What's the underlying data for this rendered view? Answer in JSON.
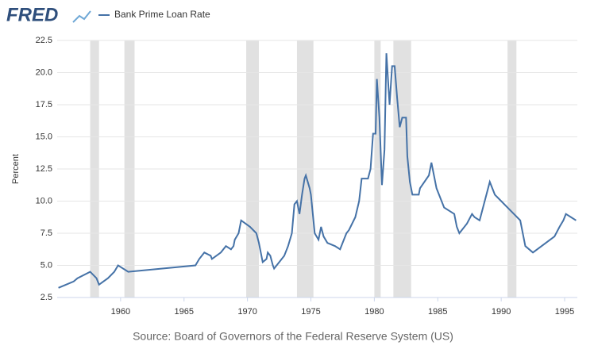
{
  "chart_data": {
    "type": "line",
    "logo": "FRED",
    "ylabel": "Percent",
    "source": "Source: Board of Governors of the Federal Reserve System (US)",
    "xlim": [
      1955,
      1996
    ],
    "xticks": [
      1960,
      1965,
      1970,
      1975,
      1980,
      1985,
      1990,
      1995
    ],
    "ylim": [
      2.5,
      22.5
    ],
    "yticks": [
      2.5,
      {
        "value": 5,
        "label": "5.0"
      },
      7.5,
      {
        "value": 10,
        "label": "10.0"
      },
      12.5,
      {
        "value": 15,
        "label": "15.0"
      },
      17.5,
      {
        "value": 20,
        "label": "20.0"
      },
      22.5
    ],
    "grid": true,
    "recession_color": "#e1e1e1",
    "recessions": [
      [
        1957.6,
        1958.3
      ],
      [
        1960.3,
        1961.1
      ],
      [
        1969.9,
        1970.9
      ],
      [
        1973.9,
        1975.2
      ],
      [
        1980.0,
        1980.5
      ],
      [
        1981.5,
        1982.9
      ],
      [
        1990.5,
        1991.2
      ]
    ],
    "x": [
      1955.1,
      1955.7,
      1956.3,
      1956.6,
      1957.6,
      1958.1,
      1958.3,
      1959.0,
      1959.5,
      1959.8,
      1960.6,
      1965.9,
      1966.2,
      1966.6,
      1967.1,
      1967.2,
      1967.9,
      1968.3,
      1968.7,
      1968.9,
      1969.0,
      1969.3,
      1969.5,
      1970.2,
      1970.7,
      1970.9,
      1971.2,
      1971.5,
      1971.6,
      1971.8,
      1972.0,
      1972.1,
      1972.5,
      1972.9,
      1973.2,
      1973.5,
      1973.7,
      1973.9,
      1974.1,
      1974.3,
      1974.5,
      1974.6,
      1974.9,
      1975.0,
      1975.3,
      1975.6,
      1975.8,
      1976.0,
      1976.3,
      1976.9,
      1977.3,
      1977.5,
      1977.8,
      1978.0,
      1978.5,
      1978.8,
      1979.0,
      1979.5,
      1979.7,
      1979.9,
      1980.1,
      1980.2,
      1980.4,
      1980.6,
      1980.8,
      1980.95,
      1981.2,
      1981.4,
      1981.6,
      1981.8,
      1982.0,
      1982.2,
      1982.5,
      1982.6,
      1982.8,
      1983.0,
      1983.5,
      1983.6,
      1984.3,
      1984.5,
      1984.9,
      1985.1,
      1985.5,
      1986.3,
      1986.5,
      1986.7,
      1987.3,
      1987.7,
      1987.9,
      1988.3,
      1988.7,
      1989.1,
      1989.5,
      1990.0,
      1991.0,
      1991.5,
      1991.9,
      1992.5,
      1994.2,
      1994.6,
      1994.9,
      1995.1,
      1995.5,
      1995.9
    ],
    "series": [
      {
        "name": "Bank Prime Loan Rate",
        "color": "#4572a7",
        "values": [
          3.25,
          3.5,
          3.75,
          4.0,
          4.5,
          4.0,
          3.5,
          4.0,
          4.5,
          5.0,
          4.5,
          5.0,
          5.5,
          6.0,
          5.75,
          5.5,
          6.0,
          6.5,
          6.25,
          6.5,
          7.0,
          7.5,
          8.5,
          8.0,
          7.5,
          6.75,
          5.25,
          5.5,
          6.0,
          5.75,
          5.0,
          4.75,
          5.25,
          5.75,
          6.5,
          7.5,
          9.75,
          10.0,
          9.0,
          10.5,
          11.75,
          12.0,
          11.0,
          10.5,
          7.5,
          7.0,
          8.0,
          7.25,
          6.75,
          6.5,
          6.25,
          6.75,
          7.5,
          7.75,
          8.75,
          10.0,
          11.75,
          11.75,
          12.5,
          15.25,
          15.25,
          19.5,
          16.5,
          11.25,
          14.0,
          21.5,
          17.5,
          20.5,
          20.5,
          18.0,
          15.75,
          16.5,
          16.5,
          13.5,
          11.5,
          10.5,
          10.5,
          11.0,
          12.0,
          13.0,
          11.0,
          10.5,
          9.5,
          9.0,
          8.0,
          7.5,
          8.25,
          9.0,
          8.75,
          8.5,
          10.0,
          11.5,
          10.5,
          10.0,
          9.0,
          8.5,
          6.5,
          6.0,
          7.25,
          8.0,
          8.5,
          9.0,
          8.75,
          8.5
        ]
      }
    ]
  }
}
